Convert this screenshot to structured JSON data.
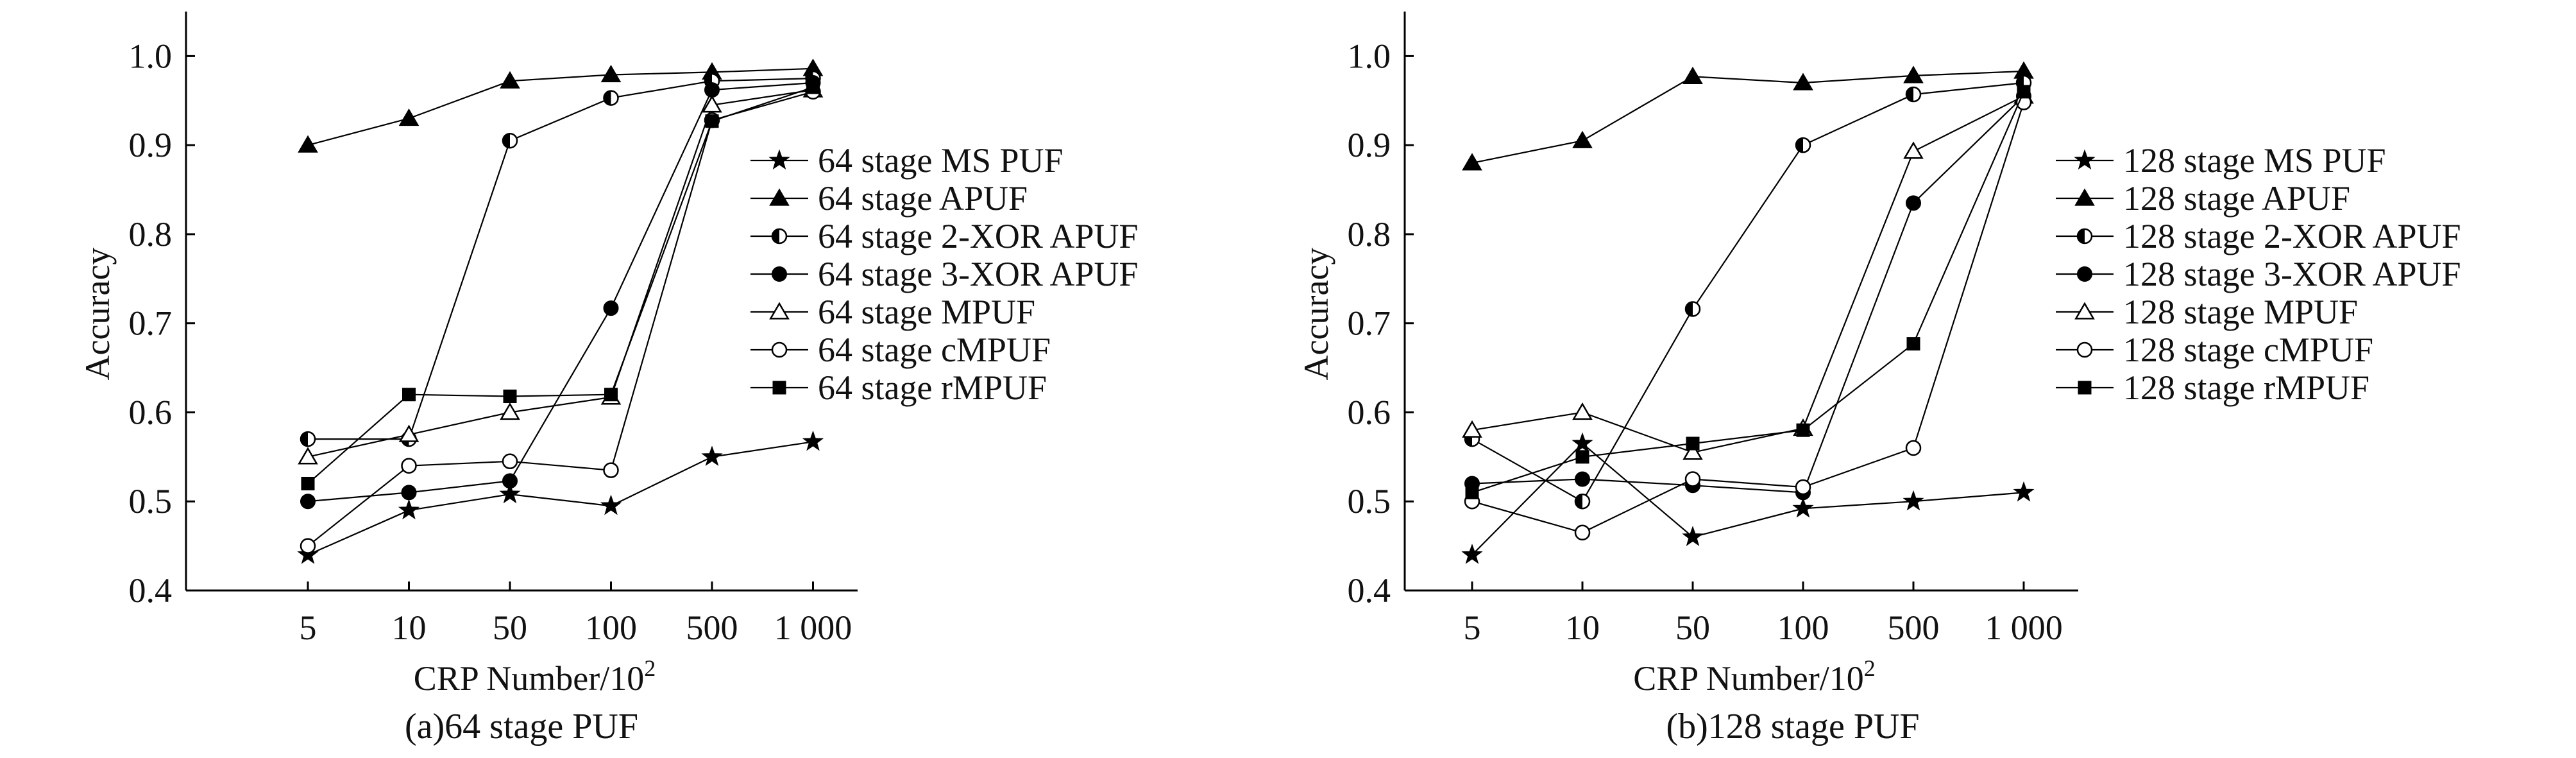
{
  "chart_data": [
    {
      "type": "line",
      "caption": "(a)64 stage PUF",
      "xlabel": "CRP Number/10",
      "xlabel_sup": "2",
      "ylabel": "Accuracy",
      "categories": [
        "5",
        "10",
        "50",
        "100",
        "500",
        "1 000"
      ],
      "yticks": [
        "0.4",
        "0.5",
        "0.6",
        "0.7",
        "0.8",
        "0.9",
        "1.0"
      ],
      "ylim": [
        0.4,
        1.05
      ],
      "grid": false,
      "legend_position": "center-right",
      "series": [
        {
          "name": "64 stage MS PUF",
          "marker": "star",
          "color": "#000000",
          "values": [
            0.44,
            0.49,
            0.508,
            0.495,
            0.55,
            0.567
          ]
        },
        {
          "name": "64 stage APUF",
          "marker": "triangle-filled",
          "color": "#000000",
          "values": [
            0.9,
            0.93,
            0.972,
            0.979,
            0.982,
            0.986
          ]
        },
        {
          "name": "64 stage 2-XOR APUF",
          "marker": "circle-half",
          "color": "#000000",
          "values": [
            0.57,
            0.57,
            0.905,
            0.953,
            0.972,
            0.975
          ]
        },
        {
          "name": "64 stage 3-XOR APUF",
          "marker": "circle-filled",
          "color": "#000000",
          "values": [
            0.5,
            0.51,
            0.523,
            0.717,
            0.962,
            0.97
          ]
        },
        {
          "name": "64 stage MPUF",
          "marker": "triangle-open",
          "color": "#000000",
          "values": [
            0.55,
            0.575,
            0.6,
            0.617,
            0.945,
            0.962
          ]
        },
        {
          "name": "64 stage cMPUF",
          "marker": "circle-open",
          "color": "#000000",
          "values": [
            0.45,
            0.54,
            0.545,
            0.535,
            0.928,
            0.96
          ]
        },
        {
          "name": "64 stage rMPUF",
          "marker": "square-filled",
          "color": "#000000",
          "values": [
            0.52,
            0.62,
            0.618,
            0.62,
            0.927,
            0.965
          ]
        }
      ]
    },
    {
      "type": "line",
      "caption": "(b)128 stage PUF",
      "xlabel": "CRP Number/10",
      "xlabel_sup": "2",
      "ylabel": "Accuracy",
      "categories": [
        "5",
        "10",
        "50",
        "100",
        "500",
        "1 000"
      ],
      "yticks": [
        "0.4",
        "0.5",
        "0.6",
        "0.7",
        "0.8",
        "0.9",
        "1.0"
      ],
      "ylim": [
        0.4,
        1.05
      ],
      "grid": false,
      "legend_position": "center-right",
      "series": [
        {
          "name": "128 stage MS PUF",
          "marker": "star",
          "color": "#000000",
          "values": [
            0.44,
            0.565,
            0.46,
            0.492,
            0.5,
            0.51
          ]
        },
        {
          "name": "128 stage APUF",
          "marker": "triangle-filled",
          "color": "#000000",
          "values": [
            0.88,
            0.905,
            0.977,
            0.97,
            0.978,
            0.983
          ]
        },
        {
          "name": "128 stage 2-XOR APUF",
          "marker": "circle-half",
          "color": "#000000",
          "values": [
            0.57,
            0.5,
            0.716,
            0.9,
            0.957,
            0.97
          ]
        },
        {
          "name": "128 stage 3-XOR APUF",
          "marker": "circle-filled",
          "color": "#000000",
          "values": [
            0.52,
            0.525,
            0.518,
            0.51,
            0.835,
            0.955
          ]
        },
        {
          "name": "128 stage MPUF",
          "marker": "triangle-open",
          "color": "#000000",
          "values": [
            0.58,
            0.6,
            0.555,
            0.582,
            0.893,
            0.955
          ]
        },
        {
          "name": "128 stage cMPUF",
          "marker": "circle-open",
          "color": "#000000",
          "values": [
            0.5,
            0.465,
            0.525,
            0.516,
            0.56,
            0.948
          ]
        },
        {
          "name": "128 stage rMPUF",
          "marker": "square-filled",
          "color": "#000000",
          "values": [
            0.51,
            0.55,
            0.565,
            0.58,
            0.677,
            0.96
          ]
        }
      ]
    }
  ]
}
